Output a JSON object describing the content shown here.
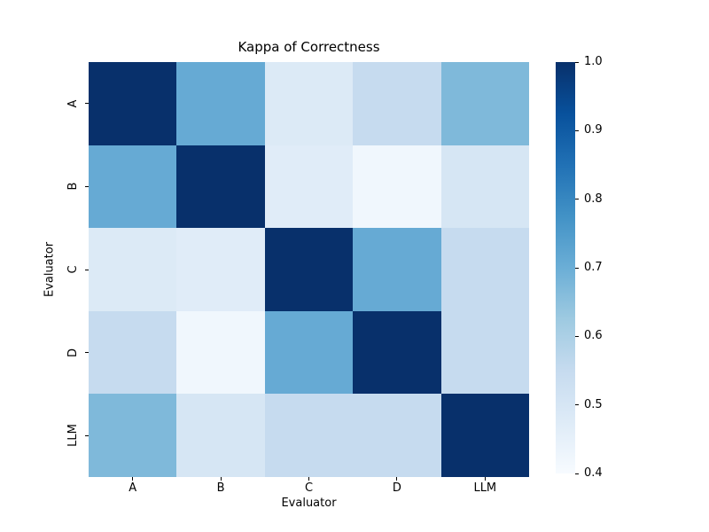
{
  "figure": {
    "background_color": "#ffffff",
    "text_color": "#000000"
  },
  "chart_data": {
    "type": "heatmap",
    "title": "Kappa of Correctness",
    "xlabel": "Evaluator",
    "ylabel": "Evaluator",
    "x_categories": [
      "A",
      "B",
      "C",
      "D",
      "LLM"
    ],
    "y_categories": [
      "A",
      "B",
      "C",
      "D",
      "LLM"
    ],
    "matrix": [
      [
        1.0,
        0.71,
        0.48,
        0.55,
        0.67
      ],
      [
        0.71,
        1.0,
        0.47,
        0.42,
        0.5
      ],
      [
        0.48,
        0.47,
        1.0,
        0.71,
        0.55
      ],
      [
        0.55,
        0.42,
        0.71,
        1.0,
        0.55
      ],
      [
        0.67,
        0.5,
        0.55,
        0.55,
        1.0
      ]
    ],
    "vmin": 0.4,
    "vmax": 1.0,
    "grid": false,
    "legend_position": "right-colorbar",
    "colormap_name": "Blues",
    "colormap_anchors": [
      "#f7fbff",
      "#deebf7",
      "#c6dbef",
      "#9ecae1",
      "#6baed6",
      "#4292c6",
      "#2171b5",
      "#08519c",
      "#08306b"
    ],
    "colorbar_tick_labels": [
      "1.0",
      "0.9",
      "0.8",
      "0.7",
      "0.6",
      "0.5",
      "0.4"
    ]
  }
}
